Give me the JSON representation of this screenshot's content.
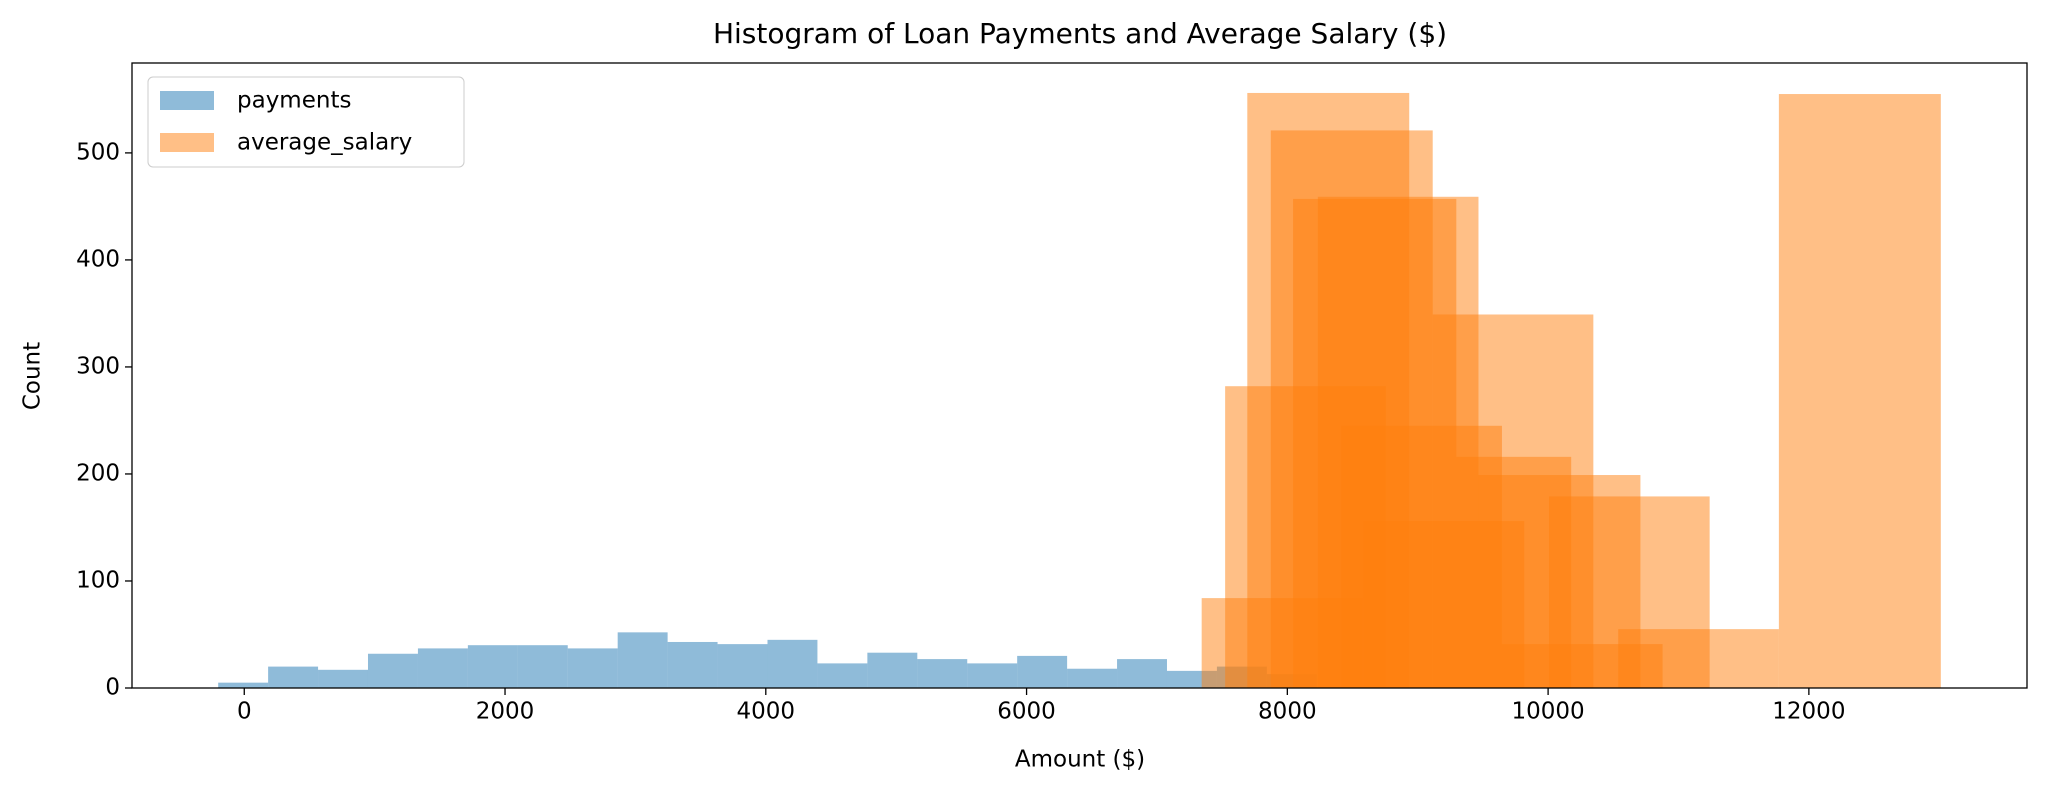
{
  "chart_data": {
    "type": "histogram",
    "title": "Histogram of Loan Payments and Average Salary ($)",
    "x_label": "Amount ($)",
    "y_label": "Count",
    "xlim": [
      -861,
      13673
    ],
    "ylim": [
      0,
      584
    ],
    "xticks": [
      0,
      2000,
      4000,
      6000,
      8000,
      10000,
      12000
    ],
    "yticks": [
      0,
      100,
      200,
      300,
      400,
      500
    ],
    "legend": "upper left",
    "series": [
      {
        "name": "payments",
        "color": "#1f77b4",
        "opacity": 0.5,
        "bins": [
          -200,
          183,
          566,
          949,
          1332,
          1715,
          2098,
          2481,
          2864,
          3247,
          3630,
          4013,
          4396,
          4779,
          5162,
          5545,
          5928,
          6311,
          6694,
          7077,
          7460,
          7843,
          8226
        ],
        "values": [
          5,
          20,
          17,
          32,
          37,
          40,
          40,
          37,
          52,
          43,
          41,
          45,
          23,
          33,
          27,
          23,
          30,
          18,
          27,
          16,
          20,
          13
        ]
      },
      {
        "name": "average_salary",
        "color": "#ff7f0e",
        "opacity": 0.5,
        "bars": [
          {
            "bin": [
              7693,
              8935
            ],
            "count": 556
          },
          {
            "bin": [
              7873,
              9115
            ],
            "count": 521
          },
          {
            "bin": [
              8044,
              9296
            ],
            "count": 457
          },
          {
            "bin": [
              8234,
              9466
            ],
            "count": 459
          },
          {
            "bin": [
              9115,
              10347
            ],
            "count": 349
          },
          {
            "bin": [
              7523,
              8755
            ],
            "count": 282
          },
          {
            "bin": [
              8414,
              9646
            ],
            "count": 245
          },
          {
            "bin": [
              9466,
              10708
            ],
            "count": 199
          },
          {
            "bin": [
              9296,
              10177
            ],
            "count": 216
          },
          {
            "bin": [
              10007,
              11239
            ],
            "count": 179
          },
          {
            "bin": [
              11770,
              13012
            ],
            "count": 555
          },
          {
            "bin": [
              10538,
              11770
            ],
            "count": 55
          },
          {
            "bin": [
              7343,
              8575
            ],
            "count": 84
          },
          {
            "bin": [
              9646,
              10878
            ],
            "count": 41
          },
          {
            "bin": [
              8585,
              9817
            ],
            "count": 156
          }
        ]
      }
    ]
  }
}
